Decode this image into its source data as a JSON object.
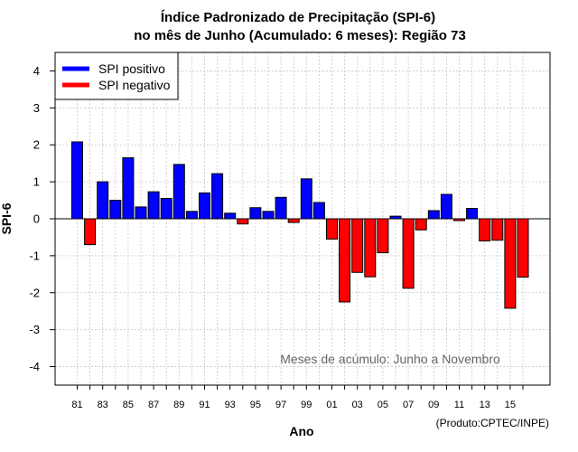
{
  "chart_data": {
    "type": "bar",
    "title_line1": "Índice Padronizado de Precipitação (SPI-6)",
    "title_line2": "no mês de Junho (Acumulado: 6 meses): Região 73",
    "xlabel": "Ano",
    "ylabel": "SPI-6",
    "ylim": [
      -4.5,
      4.5
    ],
    "yticks": [
      -4,
      -3,
      -2,
      -1,
      0,
      1,
      2,
      3,
      4
    ],
    "categories": [
      "81",
      "82",
      "83",
      "84",
      "85",
      "86",
      "87",
      "88",
      "89",
      "90",
      "91",
      "92",
      "93",
      "94",
      "95",
      "96",
      "97",
      "98",
      "99",
      "00",
      "01",
      "02",
      "03",
      "04",
      "05",
      "06",
      "07",
      "08",
      "09",
      "10",
      "11",
      "12",
      "13",
      "14",
      "15",
      "16"
    ],
    "xtick_labels": [
      "81",
      "83",
      "85",
      "87",
      "89",
      "91",
      "93",
      "95",
      "97",
      "99",
      "01",
      "03",
      "05",
      "07",
      "09",
      "11",
      "13",
      "15"
    ],
    "values": [
      2.08,
      -0.7,
      1.0,
      0.5,
      1.65,
      0.32,
      0.73,
      0.55,
      1.47,
      0.2,
      0.7,
      1.22,
      0.15,
      -0.14,
      0.3,
      0.2,
      0.58,
      -0.1,
      1.08,
      0.44,
      -0.55,
      -2.25,
      -1.45,
      -1.57,
      -0.92,
      0.07,
      -1.88,
      -0.3,
      0.22,
      0.66,
      -0.05,
      0.28,
      -0.6,
      -0.58,
      -2.42,
      -1.58
    ],
    "grid": true,
    "legend": {
      "placement": "top-left",
      "entries": [
        {
          "label": "SPI positivo",
          "color": "#0000ff"
        },
        {
          "label": "SPI negativo",
          "color": "#ff0000"
        }
      ]
    },
    "annotation": "Meses de acúmulo: Junho a Novembro",
    "credit": "(Produto:CPTEC/INPE)",
    "colors": {
      "positive": "#0000ff",
      "negative": "#ff0000",
      "grid": "#c8c8c8",
      "annotation": "#666666"
    }
  }
}
